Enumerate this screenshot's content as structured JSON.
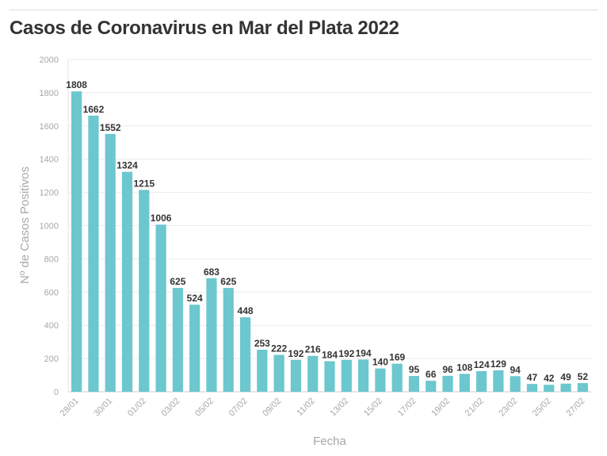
{
  "chart_data": {
    "type": "bar",
    "title": "Casos de Coronavirus en Mar del Plata 2022",
    "xlabel": "Fecha",
    "ylabel": "Nº de Casos Positivos",
    "ylim": [
      0,
      2000
    ],
    "yticks": [
      0,
      200,
      400,
      600,
      800,
      1000,
      1200,
      1400,
      1600,
      1800,
      2000
    ],
    "grid": true,
    "bar_color": "#6cc7ce",
    "categories": [
      "28/01",
      "29/01",
      "30/01",
      "31/01",
      "01/02",
      "02/02",
      "03/02",
      "04/02",
      "05/02",
      "06/02",
      "07/02",
      "08/02",
      "09/02",
      "10/02",
      "11/02",
      "12/02",
      "13/02",
      "14/02",
      "15/02",
      "16/02",
      "17/02",
      "18/02",
      "19/02",
      "20/02",
      "21/02",
      "22/02",
      "23/02",
      "24/02",
      "25/02",
      "26/02",
      "27/02"
    ],
    "tick_labels": [
      "28/01",
      "30/01",
      "01/02",
      "03/02",
      "05/02",
      "07/02",
      "09/02",
      "11/02",
      "13/02",
      "15/02",
      "17/02",
      "19/02",
      "21/02",
      "23/02",
      "25/02",
      "27/02"
    ],
    "values": [
      1808,
      1662,
      1552,
      1324,
      1215,
      1006,
      625,
      524,
      683,
      625,
      448,
      253,
      222,
      192,
      216,
      184,
      192,
      194,
      140,
      169,
      95,
      66,
      96,
      108,
      124,
      129,
      94,
      47,
      42,
      49,
      52
    ]
  }
}
